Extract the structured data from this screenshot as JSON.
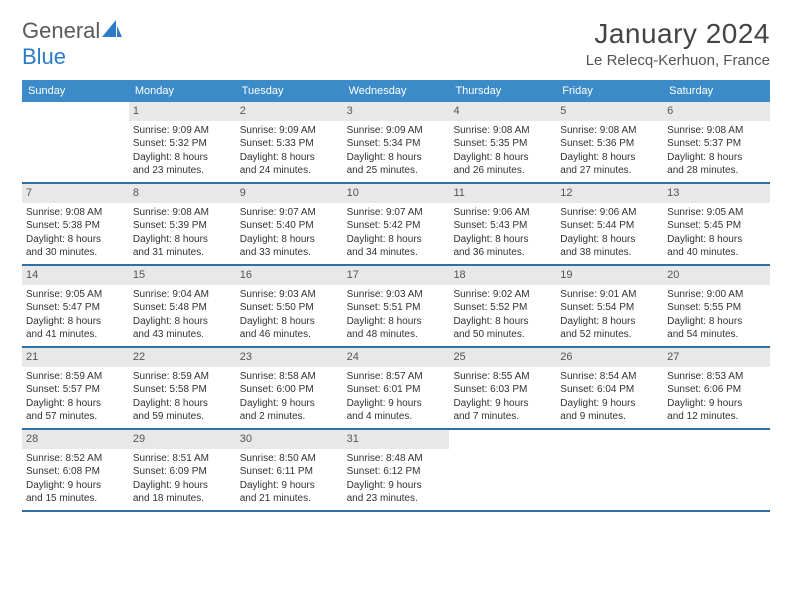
{
  "logo": {
    "word1": "General",
    "word2": "Blue"
  },
  "header": {
    "month_title": "January 2024",
    "location": "Le Relecq-Kerhuon, France"
  },
  "colors": {
    "header_bg": "#3b8bc9",
    "header_text": "#ffffff",
    "daynum_bg": "#e8e8e8",
    "daynum_text": "#555555",
    "week_border": "#326fa3",
    "logo_gray": "#5a5a5a",
    "logo_blue": "#2b7cc5"
  },
  "weekdays": [
    "Sunday",
    "Monday",
    "Tuesday",
    "Wednesday",
    "Thursday",
    "Friday",
    "Saturday"
  ],
  "weeks": [
    [
      {
        "blank": true
      },
      {
        "day": "1",
        "sunrise": "Sunrise: 9:09 AM",
        "sunset": "Sunset: 5:32 PM",
        "daylight1": "Daylight: 8 hours",
        "daylight2": "and 23 minutes."
      },
      {
        "day": "2",
        "sunrise": "Sunrise: 9:09 AM",
        "sunset": "Sunset: 5:33 PM",
        "daylight1": "Daylight: 8 hours",
        "daylight2": "and 24 minutes."
      },
      {
        "day": "3",
        "sunrise": "Sunrise: 9:09 AM",
        "sunset": "Sunset: 5:34 PM",
        "daylight1": "Daylight: 8 hours",
        "daylight2": "and 25 minutes."
      },
      {
        "day": "4",
        "sunrise": "Sunrise: 9:08 AM",
        "sunset": "Sunset: 5:35 PM",
        "daylight1": "Daylight: 8 hours",
        "daylight2": "and 26 minutes."
      },
      {
        "day": "5",
        "sunrise": "Sunrise: 9:08 AM",
        "sunset": "Sunset: 5:36 PM",
        "daylight1": "Daylight: 8 hours",
        "daylight2": "and 27 minutes."
      },
      {
        "day": "6",
        "sunrise": "Sunrise: 9:08 AM",
        "sunset": "Sunset: 5:37 PM",
        "daylight1": "Daylight: 8 hours",
        "daylight2": "and 28 minutes."
      }
    ],
    [
      {
        "day": "7",
        "sunrise": "Sunrise: 9:08 AM",
        "sunset": "Sunset: 5:38 PM",
        "daylight1": "Daylight: 8 hours",
        "daylight2": "and 30 minutes."
      },
      {
        "day": "8",
        "sunrise": "Sunrise: 9:08 AM",
        "sunset": "Sunset: 5:39 PM",
        "daylight1": "Daylight: 8 hours",
        "daylight2": "and 31 minutes."
      },
      {
        "day": "9",
        "sunrise": "Sunrise: 9:07 AM",
        "sunset": "Sunset: 5:40 PM",
        "daylight1": "Daylight: 8 hours",
        "daylight2": "and 33 minutes."
      },
      {
        "day": "10",
        "sunrise": "Sunrise: 9:07 AM",
        "sunset": "Sunset: 5:42 PM",
        "daylight1": "Daylight: 8 hours",
        "daylight2": "and 34 minutes."
      },
      {
        "day": "11",
        "sunrise": "Sunrise: 9:06 AM",
        "sunset": "Sunset: 5:43 PM",
        "daylight1": "Daylight: 8 hours",
        "daylight2": "and 36 minutes."
      },
      {
        "day": "12",
        "sunrise": "Sunrise: 9:06 AM",
        "sunset": "Sunset: 5:44 PM",
        "daylight1": "Daylight: 8 hours",
        "daylight2": "and 38 minutes."
      },
      {
        "day": "13",
        "sunrise": "Sunrise: 9:05 AM",
        "sunset": "Sunset: 5:45 PM",
        "daylight1": "Daylight: 8 hours",
        "daylight2": "and 40 minutes."
      }
    ],
    [
      {
        "day": "14",
        "sunrise": "Sunrise: 9:05 AM",
        "sunset": "Sunset: 5:47 PM",
        "daylight1": "Daylight: 8 hours",
        "daylight2": "and 41 minutes."
      },
      {
        "day": "15",
        "sunrise": "Sunrise: 9:04 AM",
        "sunset": "Sunset: 5:48 PM",
        "daylight1": "Daylight: 8 hours",
        "daylight2": "and 43 minutes."
      },
      {
        "day": "16",
        "sunrise": "Sunrise: 9:03 AM",
        "sunset": "Sunset: 5:50 PM",
        "daylight1": "Daylight: 8 hours",
        "daylight2": "and 46 minutes."
      },
      {
        "day": "17",
        "sunrise": "Sunrise: 9:03 AM",
        "sunset": "Sunset: 5:51 PM",
        "daylight1": "Daylight: 8 hours",
        "daylight2": "and 48 minutes."
      },
      {
        "day": "18",
        "sunrise": "Sunrise: 9:02 AM",
        "sunset": "Sunset: 5:52 PM",
        "daylight1": "Daylight: 8 hours",
        "daylight2": "and 50 minutes."
      },
      {
        "day": "19",
        "sunrise": "Sunrise: 9:01 AM",
        "sunset": "Sunset: 5:54 PM",
        "daylight1": "Daylight: 8 hours",
        "daylight2": "and 52 minutes."
      },
      {
        "day": "20",
        "sunrise": "Sunrise: 9:00 AM",
        "sunset": "Sunset: 5:55 PM",
        "daylight1": "Daylight: 8 hours",
        "daylight2": "and 54 minutes."
      }
    ],
    [
      {
        "day": "21",
        "sunrise": "Sunrise: 8:59 AM",
        "sunset": "Sunset: 5:57 PM",
        "daylight1": "Daylight: 8 hours",
        "daylight2": "and 57 minutes."
      },
      {
        "day": "22",
        "sunrise": "Sunrise: 8:59 AM",
        "sunset": "Sunset: 5:58 PM",
        "daylight1": "Daylight: 8 hours",
        "daylight2": "and 59 minutes."
      },
      {
        "day": "23",
        "sunrise": "Sunrise: 8:58 AM",
        "sunset": "Sunset: 6:00 PM",
        "daylight1": "Daylight: 9 hours",
        "daylight2": "and 2 minutes."
      },
      {
        "day": "24",
        "sunrise": "Sunrise: 8:57 AM",
        "sunset": "Sunset: 6:01 PM",
        "daylight1": "Daylight: 9 hours",
        "daylight2": "and 4 minutes."
      },
      {
        "day": "25",
        "sunrise": "Sunrise: 8:55 AM",
        "sunset": "Sunset: 6:03 PM",
        "daylight1": "Daylight: 9 hours",
        "daylight2": "and 7 minutes."
      },
      {
        "day": "26",
        "sunrise": "Sunrise: 8:54 AM",
        "sunset": "Sunset: 6:04 PM",
        "daylight1": "Daylight: 9 hours",
        "daylight2": "and 9 minutes."
      },
      {
        "day": "27",
        "sunrise": "Sunrise: 8:53 AM",
        "sunset": "Sunset: 6:06 PM",
        "daylight1": "Daylight: 9 hours",
        "daylight2": "and 12 minutes."
      }
    ],
    [
      {
        "day": "28",
        "sunrise": "Sunrise: 8:52 AM",
        "sunset": "Sunset: 6:08 PM",
        "daylight1": "Daylight: 9 hours",
        "daylight2": "and 15 minutes."
      },
      {
        "day": "29",
        "sunrise": "Sunrise: 8:51 AM",
        "sunset": "Sunset: 6:09 PM",
        "daylight1": "Daylight: 9 hours",
        "daylight2": "and 18 minutes."
      },
      {
        "day": "30",
        "sunrise": "Sunrise: 8:50 AM",
        "sunset": "Sunset: 6:11 PM",
        "daylight1": "Daylight: 9 hours",
        "daylight2": "and 21 minutes."
      },
      {
        "day": "31",
        "sunrise": "Sunrise: 8:48 AM",
        "sunset": "Sunset: 6:12 PM",
        "daylight1": "Daylight: 9 hours",
        "daylight2": "and 23 minutes."
      },
      {
        "blank": true
      },
      {
        "blank": true
      },
      {
        "blank": true
      }
    ]
  ]
}
